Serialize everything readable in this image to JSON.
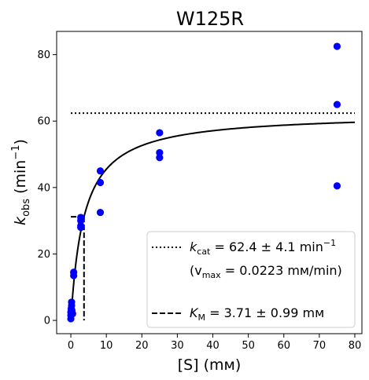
{
  "chart_data": {
    "type": "scatter",
    "title": "W125R",
    "xlabel": "[S] (mᴍ)",
    "ylabel": {
      "main": "k",
      "sub": "obs",
      "unit_pre": " (min",
      "unit_sup": "−1",
      "unit_post": ")"
    },
    "xlim": [
      -4,
      82
    ],
    "ylim": [
      -4,
      87
    ],
    "x_ticks": [
      0,
      10,
      20,
      30,
      40,
      50,
      60,
      70,
      80
    ],
    "x_tick_labels": [
      "0",
      "10",
      "20",
      "30",
      "40",
      "50",
      "60",
      "70",
      "80"
    ],
    "y_ticks": [
      0,
      20,
      40,
      60,
      80
    ],
    "y_tick_labels": [
      "0",
      "20",
      "40",
      "60",
      "80"
    ],
    "grid": false,
    "points": {
      "color": "#0000ff",
      "x": [
        0,
        0,
        0,
        0.1,
        0.2,
        0.2,
        0.3,
        0.5,
        0.8,
        0.8,
        2.8,
        2.8,
        2.8,
        2.8,
        8.3,
        8.3,
        8.3,
        25,
        25,
        25,
        75,
        75,
        75
      ],
      "y": [
        0.5,
        1.5,
        2.5,
        3.5,
        4.5,
        5.5,
        3,
        2,
        14.5,
        13.5,
        31,
        30,
        28.5,
        28,
        45,
        41.5,
        32.5,
        56.5,
        50.5,
        49,
        82.5,
        65,
        40.5
      ]
    },
    "fit": {
      "color": "#000000",
      "kcat": 62.4,
      "km": 3.71,
      "x_range": [
        0,
        80
      ]
    },
    "kcat_line": {
      "y": 62.4,
      "x_range": [
        0,
        80
      ],
      "color": "#000000"
    },
    "km_lines": {
      "km": 3.71,
      "half": 31.2,
      "color": "#000000"
    },
    "legend": {
      "placement": "lower-right",
      "kcat_entry": {
        "k": "k",
        "sub": "cat",
        "text": " = 62.4 ± 4.1 min",
        "sup": "−1"
      },
      "vmax_entry": {
        "open": "(v",
        "sub": "max",
        "text": " = 0.0223 mᴍ/min)"
      },
      "km_entry": {
        "k": "K",
        "sub": "M",
        "text": " = 3.71 ± 0.99 mᴍ"
      }
    }
  }
}
